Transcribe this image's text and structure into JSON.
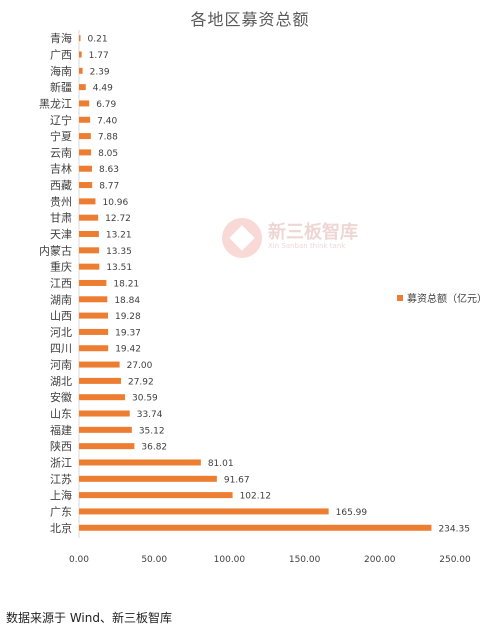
{
  "title": "各地区募资总额",
  "source": "数据来源于 Wind、新三板智库",
  "watermark": {
    "text": "新三板智库",
    "sub": "Xin Sanban think tank"
  },
  "colors": {
    "bar": "#ED7D31",
    "axis": "#D9D9D9",
    "text": "#404040"
  },
  "chart_data": {
    "type": "bar",
    "orientation": "horizontal",
    "title": "各地区募资总额",
    "categories": [
      "青海",
      "广西",
      "海南",
      "新疆",
      "黑龙江",
      "辽宁",
      "宁夏",
      "云南",
      "吉林",
      "西藏",
      "贵州",
      "甘肃",
      "天津",
      "内蒙古",
      "重庆",
      "江西",
      "湖南",
      "山西",
      "河北",
      "四川",
      "河南",
      "湖北",
      "安徽",
      "山东",
      "福建",
      "陕西",
      "浙江",
      "江苏",
      "上海",
      "广东",
      "北京"
    ],
    "series": [
      {
        "name": "募资总额（亿元）",
        "values": [
          0.21,
          1.77,
          2.39,
          4.49,
          6.79,
          7.4,
          7.88,
          8.05,
          8.63,
          8.77,
          10.96,
          12.72,
          13.21,
          13.35,
          13.51,
          18.21,
          18.84,
          19.28,
          19.37,
          19.42,
          27.0,
          27.92,
          30.59,
          33.74,
          35.12,
          36.82,
          81.01,
          91.67,
          102.12,
          165.99,
          234.35
        ]
      }
    ],
    "value_labels": [
      "0.21",
      "1.77",
      "2.39",
      "4.49",
      "6.79",
      "7.40",
      "7.88",
      "8.05",
      "8.63",
      "8.77",
      "10.96",
      "12.72",
      "13.21",
      "13.35",
      "13.51",
      "18.21",
      "18.84",
      "19.28",
      "19.37",
      "19.42",
      "27.00",
      "27.92",
      "30.59",
      "33.74",
      "35.12",
      "36.82",
      "81.01",
      "91.67",
      "102.12",
      "165.99",
      "234.35"
    ],
    "xlim": [
      0,
      250
    ],
    "xticks": [
      "0.00",
      "50.00",
      "100.00",
      "150.00",
      "200.00",
      "250.00"
    ],
    "xtick_values": [
      0,
      50,
      100,
      150,
      200,
      250
    ],
    "grid": false,
    "legend_position": "right"
  }
}
